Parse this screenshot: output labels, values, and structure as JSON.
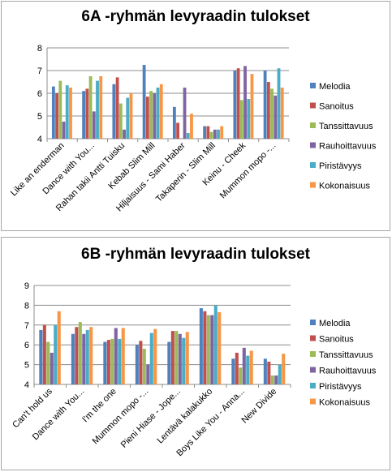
{
  "chart_data": [
    {
      "type": "bar",
      "title": "6A -ryhmän levyraadin tulokset",
      "categories": [
        "Like an enderman",
        "Dance with You...",
        "Rahan takii Antti Tuisku",
        "Kebab Slim Mill",
        "Hiljaisuus - Sami Haber",
        "Takaperin - Slim Mill",
        "Keinu - Cheek",
        "Mummon mopo -..."
      ],
      "y_ticks": [
        "4",
        "5",
        "6",
        "7",
        "8"
      ],
      "ylim": [
        4,
        8
      ],
      "grid": true,
      "legend": "right",
      "series": [
        {
          "name": "Melodia",
          "color": "#4f81bd",
          "values": [
            6.3,
            6.1,
            6.4,
            7.25,
            5.4,
            4.55,
            7.0,
            7.0
          ]
        },
        {
          "name": "Sanoitus",
          "color": "#c0504d",
          "values": [
            6.0,
            6.2,
            6.7,
            5.85,
            4.7,
            4.55,
            7.1,
            6.5
          ]
        },
        {
          "name": "Tanssittavuus",
          "color": "#9bbb59",
          "values": [
            6.55,
            6.75,
            5.55,
            6.1,
            4.0,
            4.3,
            5.7,
            6.2
          ]
        },
        {
          "name": "Rauhoittavuus",
          "color": "#8064a2",
          "values": [
            4.75,
            5.2,
            4.4,
            6.0,
            6.25,
            4.4,
            7.2,
            5.9
          ]
        },
        {
          "name": "Piristävyys",
          "color": "#4bacc6",
          "values": [
            6.35,
            6.55,
            5.8,
            6.25,
            4.25,
            4.4,
            5.75,
            7.1
          ]
        },
        {
          "name": "Kokonaisuus",
          "color": "#f79646",
          "values": [
            6.25,
            6.75,
            6.0,
            6.4,
            5.1,
            4.55,
            6.85,
            6.25
          ]
        }
      ]
    },
    {
      "type": "bar",
      "title": "6B -ryhmän levyraadin tulokset",
      "categories": [
        "Can't hold us",
        "Dance with You...",
        "I'm the one",
        "Mummon mopo -...",
        "Pieni Hiase - Jope...",
        "Lentävä kalakukko",
        "Boys Like You - Anna...",
        "New Divide"
      ],
      "y_ticks": [
        "4",
        "5",
        "6",
        "7",
        "8",
        "9"
      ],
      "ylim": [
        4,
        9
      ],
      "grid": true,
      "legend": "right",
      "series": [
        {
          "name": "Melodia",
          "color": "#4f81bd",
          "values": [
            6.75,
            6.55,
            6.15,
            6.0,
            6.15,
            7.85,
            5.3,
            5.3
          ]
        },
        {
          "name": "Sanoitus",
          "color": "#c0504d",
          "values": [
            7.0,
            6.9,
            6.25,
            6.2,
            6.7,
            7.7,
            5.6,
            5.15
          ]
        },
        {
          "name": "Tanssittavuus",
          "color": "#9bbb59",
          "values": [
            6.15,
            7.15,
            6.3,
            5.8,
            6.7,
            7.5,
            4.85,
            4.45
          ]
        },
        {
          "name": "Rauhoittavuus",
          "color": "#8064a2",
          "values": [
            5.6,
            6.55,
            6.85,
            5.0,
            6.55,
            7.5,
            5.85,
            4.45
          ]
        },
        {
          "name": "Piristävyys",
          "color": "#4bacc6",
          "values": [
            7.0,
            6.75,
            6.3,
            6.6,
            6.35,
            8.0,
            5.45,
            5.0
          ]
        },
        {
          "name": "Kokonaisuus",
          "color": "#f79646",
          "values": [
            7.7,
            6.9,
            6.85,
            6.8,
            6.65,
            7.65,
            5.7,
            5.55
          ]
        }
      ]
    }
  ]
}
